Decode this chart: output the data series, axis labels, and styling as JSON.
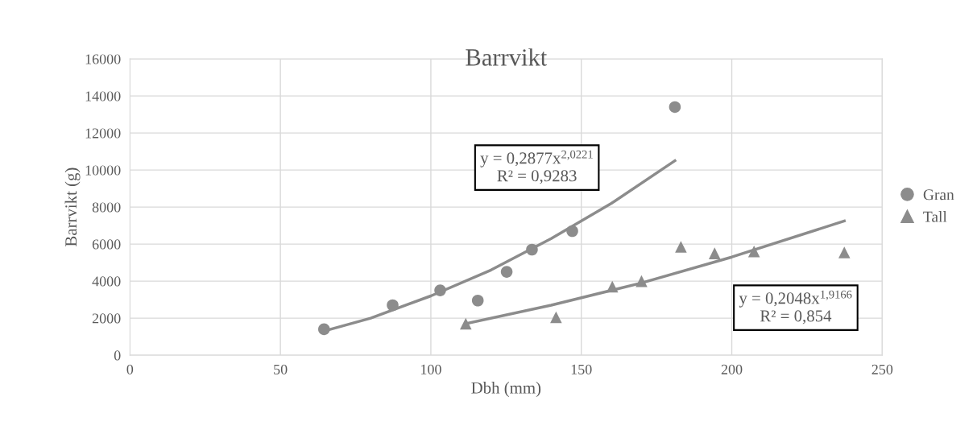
{
  "chart_data": {
    "type": "scatter",
    "title": "Barrvikt",
    "xlabel": "Dbh (mm)",
    "ylabel": "Barrvikt (g)",
    "xlim": [
      0,
      250
    ],
    "xticks": [
      0,
      50,
      100,
      150,
      200,
      250
    ],
    "ylim": [
      0,
      16000
    ],
    "yticks": [
      0,
      2000,
      4000,
      6000,
      8000,
      10000,
      12000,
      14000,
      16000
    ],
    "grid": true,
    "legend": "right",
    "series": [
      {
        "name": "Gran",
        "marker": "circle",
        "color": "#8c8c8c",
        "x": [
          64.5,
          87.3,
          103.1,
          115.6,
          125.2,
          133.6,
          147.0,
          181.1
        ],
        "values": [
          1400,
          2700,
          3500,
          2950,
          4500,
          5700,
          6700,
          13400
        ]
      },
      {
        "name": "Tall",
        "marker": "triangle",
        "color": "#8c8c8c",
        "x": [
          111.6,
          141.6,
          160.3,
          170.0,
          183.1,
          194.3,
          207.4,
          237.4
        ],
        "values": [
          1700,
          2050,
          3700,
          4000,
          5850,
          5500,
          5600,
          5550
        ]
      },
      {
        "type": "line",
        "marker": "none",
        "color": "#8c8c8c",
        "x": [
          64.5,
          80,
          100,
          120,
          140,
          160,
          181.1
        ],
        "values": [
          1300,
          2000,
          3200,
          4600,
          6300,
          8200,
          10500
        ]
      },
      {
        "type": "line",
        "marker": "none",
        "color": "#8c8c8c",
        "x": [
          111.6,
          140,
          170,
          200,
          237.4
        ],
        "values": [
          1700,
          2700,
          3900,
          5300,
          7250
        ]
      }
    ],
    "annotations": [
      "y = 0,2877x$^{2,0221}$\nR² = 0,9283",
      "y = 0,2048x$^{1,9166}$\nR² = 0,854"
    ]
  }
}
